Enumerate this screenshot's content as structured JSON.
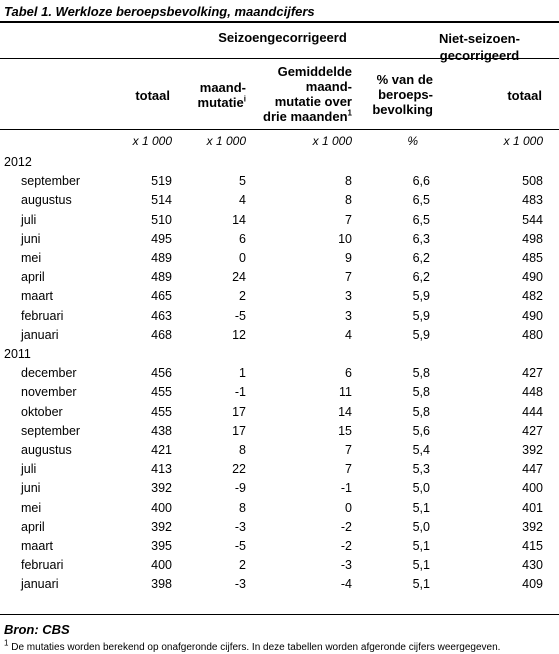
{
  "title": "Tabel 1. Werkloze beroepsbevolking, maandcijfers",
  "groups": {
    "seasonal": "Seizoengecorrigeerd",
    "non_seasonal": "Niet-seizoen-gecorrigeerd"
  },
  "columns": {
    "totaal": "totaal",
    "maandmutatie": "maand-mutatie",
    "maandmutatie_sup": "1",
    "gemiddelde": "Gemiddelde maand-mutatie over drie maanden",
    "gemiddelde_sup": "1",
    "percentage": "% van de beroeps-bevolking",
    "totaal_nsa": "totaal"
  },
  "units": [
    "x 1 000",
    "x 1 000",
    "x 1 000",
    "%",
    "x 1 000"
  ],
  "years": [
    {
      "year": "2012",
      "rows": [
        [
          "september",
          "519",
          "5",
          "8",
          "6,6",
          "508"
        ],
        [
          "augustus",
          "514",
          "4",
          "8",
          "6,5",
          "483"
        ],
        [
          "juli",
          "510",
          "14",
          "7",
          "6,5",
          "544"
        ],
        [
          "juni",
          "495",
          "6",
          "10",
          "6,3",
          "498"
        ],
        [
          "mei",
          "489",
          "0",
          "9",
          "6,2",
          "485"
        ],
        [
          "april",
          "489",
          "24",
          "7",
          "6,2",
          "490"
        ],
        [
          "maart",
          "465",
          "2",
          "3",
          "5,9",
          "482"
        ],
        [
          "februari",
          "463",
          "-5",
          "3",
          "5,9",
          "490"
        ],
        [
          "januari",
          "468",
          "12",
          "4",
          "5,9",
          "480"
        ]
      ]
    },
    {
      "year": "2011",
      "rows": [
        [
          "december",
          "456",
          "1",
          "6",
          "5,8",
          "427"
        ],
        [
          "november",
          "455",
          "-1",
          "11",
          "5,8",
          "448"
        ],
        [
          "oktober",
          "455",
          "17",
          "14",
          "5,8",
          "444"
        ],
        [
          "september",
          "438",
          "17",
          "15",
          "5,6",
          "427"
        ],
        [
          "augustus",
          "421",
          "8",
          "7",
          "5,4",
          "392"
        ],
        [
          "juli",
          "413",
          "22",
          "7",
          "5,3",
          "447"
        ],
        [
          "juni",
          "392",
          "-9",
          "-1",
          "5,0",
          "400"
        ],
        [
          "mei",
          "400",
          "8",
          "0",
          "5,1",
          "401"
        ],
        [
          "april",
          "392",
          "-3",
          "-2",
          "5,0",
          "392"
        ],
        [
          "maart",
          "395",
          "-5",
          "-2",
          "5,1",
          "415"
        ],
        [
          "februari",
          "400",
          "2",
          "-3",
          "5,1",
          "430"
        ],
        [
          "januari",
          "398",
          "-3",
          "-4",
          "5,1",
          "409"
        ]
      ]
    }
  ],
  "source": "Bron: CBS",
  "footnote": {
    "mark": "1",
    "text": "De mutaties worden berekend op onafgeronde cijfers. In deze tabellen worden afgeronde cijfers weergegeven."
  }
}
